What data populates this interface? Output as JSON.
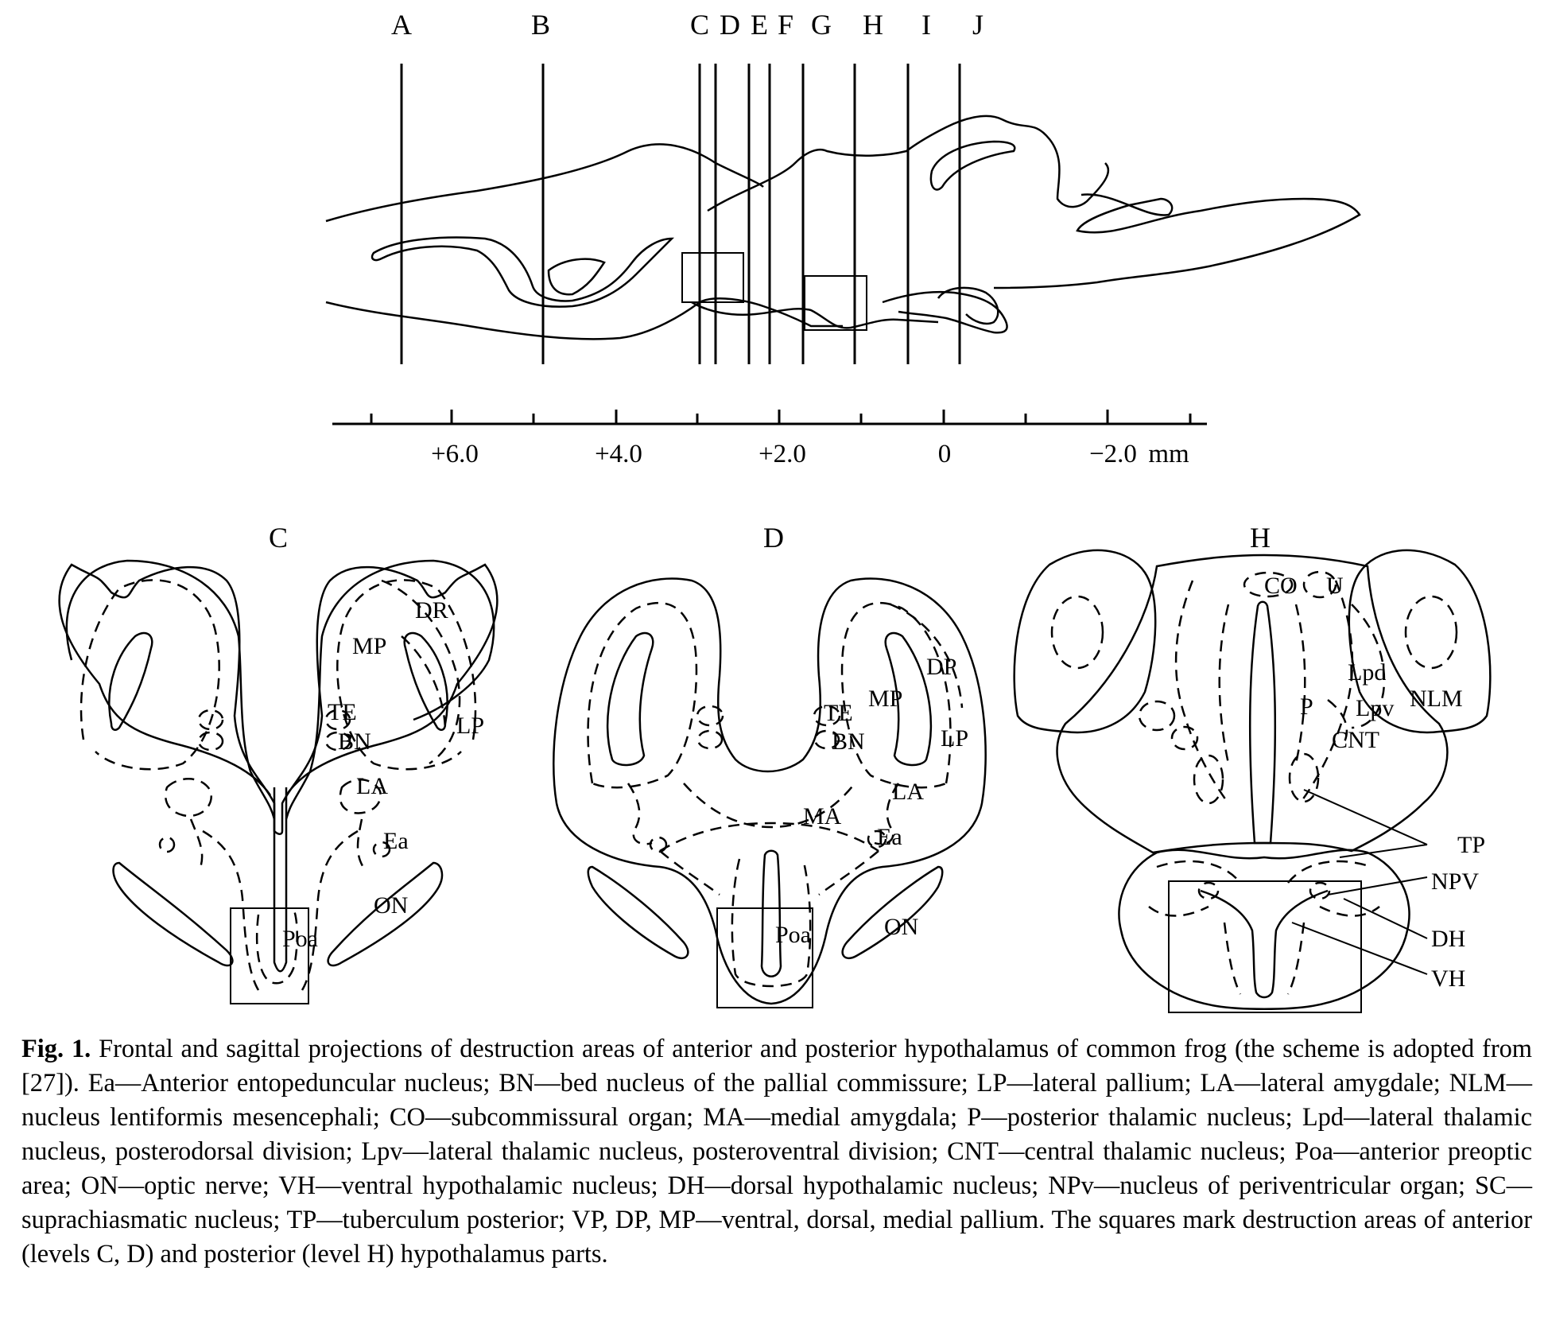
{
  "figure": {
    "sagittal": {
      "levels": [
        "A",
        "B",
        "C",
        "D",
        "E",
        "F",
        "G",
        "H",
        "I",
        "J"
      ],
      "scale_ticks": [
        "+6.0",
        "+4.0",
        "+2.0",
        "0",
        "−2.0",
        "mm"
      ]
    },
    "sections": [
      {
        "title": "C",
        "labels": [
          "DR",
          "MP",
          "TE",
          "BN",
          "LP",
          "LA",
          "Ea",
          "ON",
          "Poa"
        ]
      },
      {
        "title": "D",
        "labels": [
          "DP",
          "MP",
          "TE",
          "BN",
          "LP",
          "LA",
          "MA",
          "Ea",
          "ON",
          "Poa"
        ]
      },
      {
        "title": "H",
        "labels": [
          "CO",
          "U",
          "Lpd",
          "P",
          "Lpv",
          "NLM",
          "CNT",
          "TP",
          "NPV",
          "DH",
          "VH"
        ]
      }
    ]
  },
  "caption": {
    "label": "Fig. 1.",
    "text": "Frontal and sagittal projections of destruction areas of anterior and posterior hypothalamus of common frog (the scheme is adopted from [27]). Ea—Anterior entopeduncular nucleus; BN—bed nucleus of the pallial commissure; LP—lateral pallium; LA—lateral amygdale; NLM—nucleus lentiformis mesencephali; CO—subcommissural organ; MA—medial amygdala; P—posterior thalamic nucleus; Lpd—lateral thalamic nucleus, posterodorsal division; Lpv—lateral thalamic nucleus, posteroventral division; CNT—central thalamic nucleus; Poa—anterior preoptic area; ON—optic nerve; VH—ventral hypothalamic nucleus; DH—dorsal hypothalamic nucleus; NPv—nucleus of periventricular organ; SC—suprachiasmatic nucleus; TP—tuberculum posterior; VP, DP, MP—ventral, dorsal, medial pallium. The squares mark destruction areas of anterior (levels C, D) and posterior (level H) hypothalamus parts."
  }
}
